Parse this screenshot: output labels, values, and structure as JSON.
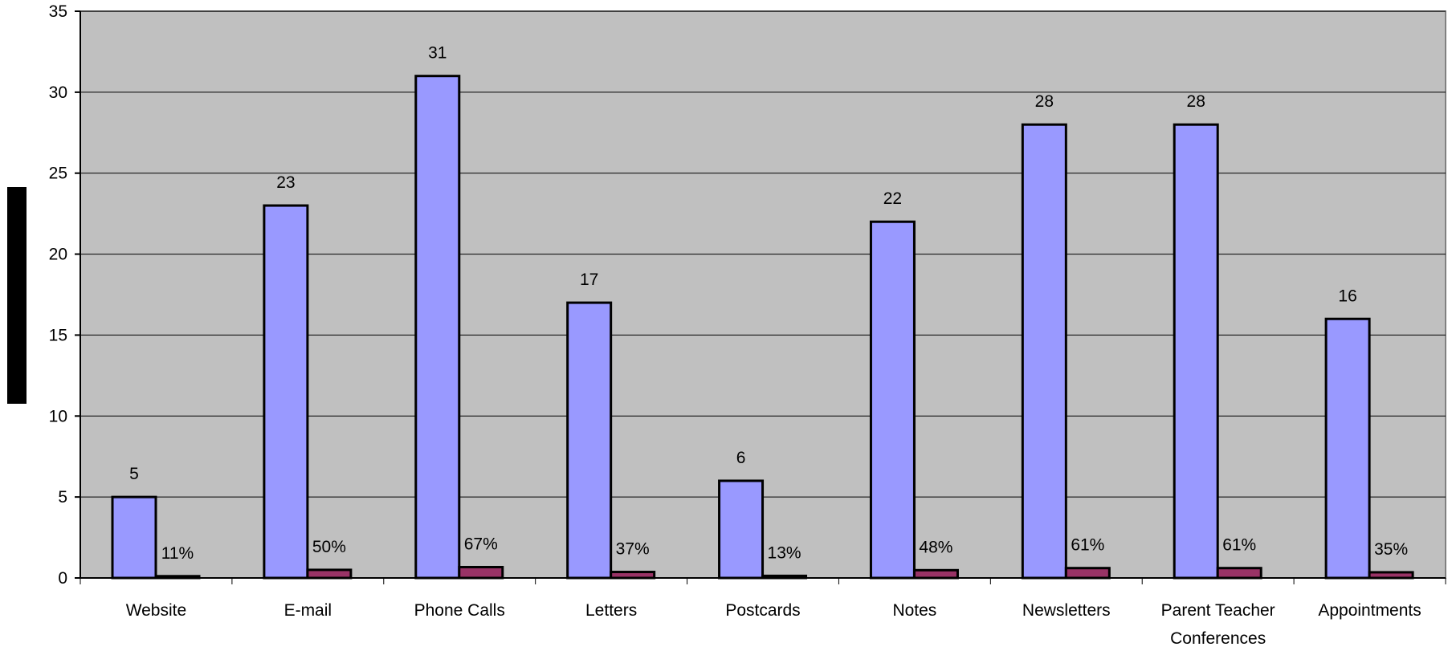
{
  "chart_data": {
    "type": "bar",
    "title": "",
    "xlabel": "",
    "ylabel": "",
    "ylim": [
      0,
      35
    ],
    "yticks": [
      0,
      5,
      10,
      15,
      20,
      25,
      30,
      35
    ],
    "grid": true,
    "legend": "none",
    "categories": [
      [
        "Website"
      ],
      [
        "E-mail"
      ],
      [
        "Phone Calls"
      ],
      [
        "Letters"
      ],
      [
        "Postcards"
      ],
      [
        "Notes"
      ],
      [
        "Newsletters"
      ],
      [
        "Parent Teacher",
        "Conferences"
      ],
      [
        "Appointments"
      ]
    ],
    "series": [
      {
        "values": [
          5,
          23,
          31,
          17,
          6,
          22,
          28,
          28,
          16
        ],
        "labels": [
          "5",
          "23",
          "31",
          "17",
          "6",
          "22",
          "28",
          "28",
          "16"
        ],
        "color": "#9999ff"
      },
      {
        "values": [
          0.11,
          0.5,
          0.67,
          0.37,
          0.13,
          0.48,
          0.61,
          0.61,
          0.35
        ],
        "labels": [
          "11%",
          "50%",
          "67%",
          "37%",
          "13%",
          "48%",
          "61%",
          "61%",
          "35%"
        ],
        "color": "#993366"
      }
    ],
    "colors": {
      "plot_background": "#c0c0c0",
      "gridline": "#000000",
      "bar_outline": "#000000"
    }
  }
}
